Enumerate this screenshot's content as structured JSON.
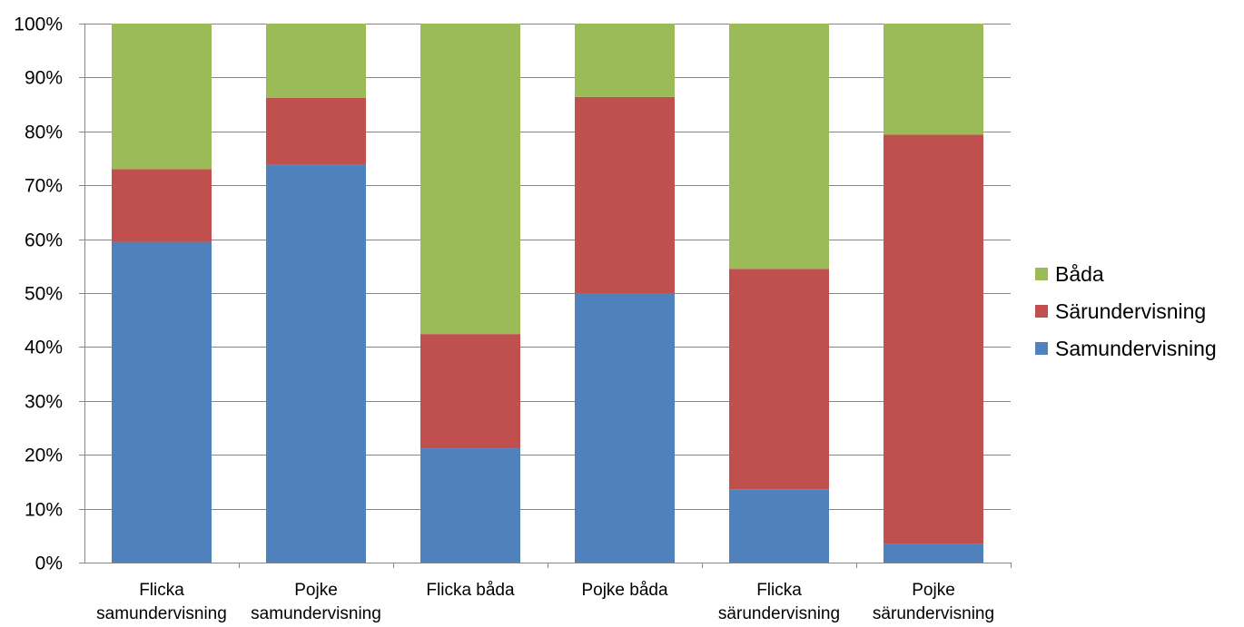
{
  "chart_data": {
    "type": "bar",
    "stacked": true,
    "percent": true,
    "categories": [
      [
        "Flicka",
        "samundervisning"
      ],
      [
        "Pojke",
        "samundervisning"
      ],
      [
        "Flicka båda"
      ],
      [
        "Pojke båda"
      ],
      [
        "Flicka",
        "särundervisning"
      ],
      [
        "Pojke",
        "särundervisning"
      ]
    ],
    "series": [
      {
        "name": "Samundervisning",
        "color": "#4F81BD",
        "values": [
          59.5,
          73.8,
          21.2,
          50.0,
          13.6,
          3.4
        ]
      },
      {
        "name": "Särundervisning",
        "color": "#C0504D",
        "values": [
          13.5,
          12.4,
          21.2,
          36.4,
          40.9,
          76.0
        ]
      },
      {
        "name": "Båda",
        "color": "#9BBB59",
        "values": [
          27.0,
          13.8,
          57.6,
          13.6,
          45.5,
          20.6
        ]
      }
    ],
    "y_ticks": [
      "0%",
      "10%",
      "20%",
      "30%",
      "40%",
      "50%",
      "60%",
      "70%",
      "80%",
      "90%",
      "100%"
    ],
    "ylim": [
      0,
      100
    ],
    "grid": true,
    "legend_position": "right",
    "legend_order": [
      "Båda",
      "Särundervisning",
      "Samundervisning"
    ],
    "title": "",
    "xlabel": "",
    "ylabel": ""
  }
}
